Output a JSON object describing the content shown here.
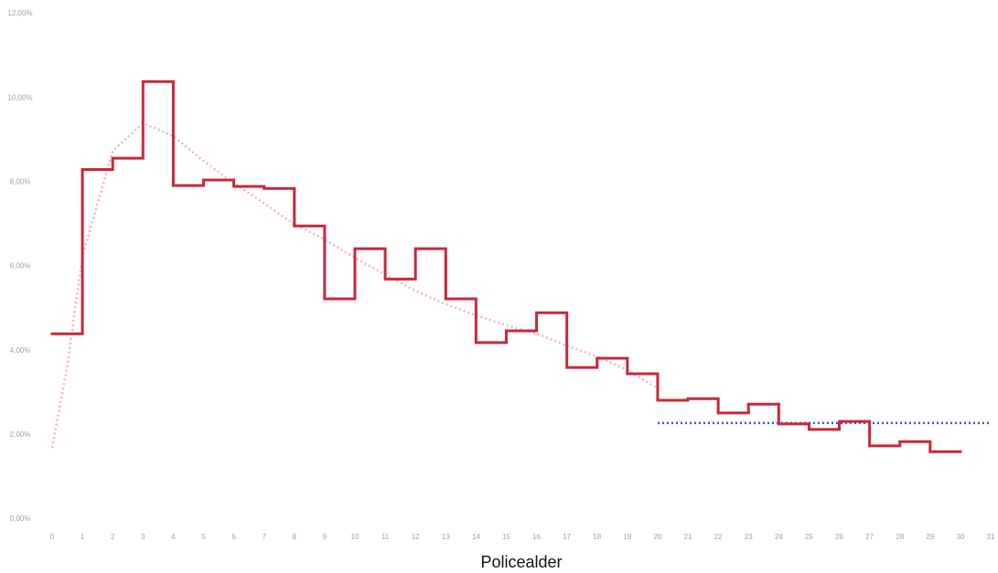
{
  "chart_data": {
    "type": "histogram",
    "xlabel": "Policealder",
    "bins": [
      0,
      1,
      2,
      3,
      4,
      5,
      6,
      7,
      8,
      9,
      10,
      11,
      12,
      13,
      14,
      15,
      16,
      17,
      18,
      19,
      20,
      21,
      22,
      23,
      24,
      25,
      26,
      27,
      28,
      29,
      30
    ],
    "values": [
      4.4,
      8.3,
      8.57,
      10.39,
      7.92,
      8.05,
      7.9,
      7.85,
      6.96,
      5.23,
      6.42,
      5.7,
      6.42,
      5.23,
      4.19,
      4.47,
      4.9,
      3.6,
      3.82,
      3.45,
      2.82,
      2.86,
      2.52,
      2.73,
      2.26,
      2.13,
      2.32,
      1.74,
      1.84,
      1.6
    ],
    "color": "#c8283c",
    "overlays": [
      {
        "type": "line",
        "color": "#f2b3bf",
        "x": [
          0,
          0.5,
          1,
          2,
          3,
          4,
          5,
          6,
          7,
          8,
          9,
          10,
          11,
          12,
          13,
          14,
          15,
          16,
          17,
          18,
          19,
          20
        ],
        "values": [
          1.69,
          3.64,
          6.25,
          8.74,
          9.4,
          9.1,
          8.5,
          7.98,
          7.5,
          7.0,
          6.64,
          6.2,
          5.81,
          5.42,
          5.1,
          4.84,
          4.6,
          4.4,
          4.12,
          3.86,
          3.54,
          3.1
        ]
      },
      {
        "type": "line",
        "color": "#4a4ad0",
        "x": [
          20,
          31
        ],
        "values": [
          2.28,
          2.28
        ]
      }
    ],
    "xlim": [
      0,
      31
    ],
    "xticks": [
      0,
      1,
      2,
      3,
      4,
      5,
      6,
      7,
      8,
      9,
      10,
      11,
      12,
      13,
      14,
      15,
      16,
      17,
      18,
      19,
      20,
      21,
      22,
      23,
      24,
      25,
      26,
      27,
      28,
      29,
      30,
      31
    ],
    "ylim": [
      0,
      12
    ],
    "yticks": [
      {
        "value": 0,
        "label": "0,00%"
      },
      {
        "value": 2,
        "label": "2,00%"
      },
      {
        "value": 4,
        "label": "4,00%"
      },
      {
        "value": 6,
        "label": "6,00%"
      },
      {
        "value": 8,
        "label": "8,00%"
      },
      {
        "value": 10,
        "label": "10,00%"
      },
      {
        "value": 12,
        "label": "12,00%"
      }
    ]
  }
}
